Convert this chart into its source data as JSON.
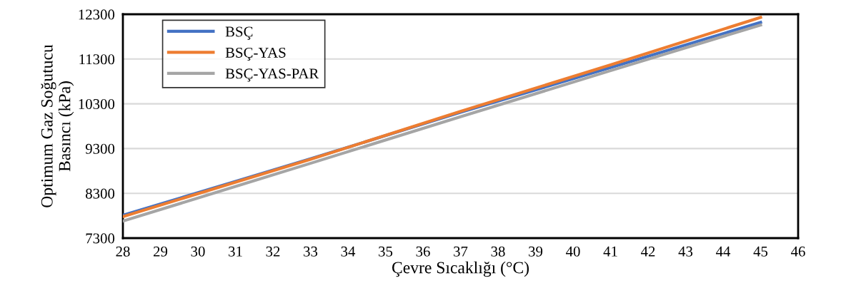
{
  "chart_data": {
    "type": "line",
    "xlabel": "Çevre Sıcaklığı (°C)",
    "ylabel": "Optimum Gaz Soğutucu\nBasıncı (kPa)",
    "series": [
      {
        "name": "BSÇ",
        "color": "#4472c4",
        "x": [
          28,
          33,
          37,
          41,
          45
        ],
        "values": [
          7810,
          9070,
          10110,
          11110,
          12120
        ]
      },
      {
        "name": "BSÇ-YAS",
        "color": "#ed7d31",
        "x": [
          28,
          33,
          37,
          41,
          45
        ],
        "values": [
          7780,
          9060,
          10130,
          11170,
          12230
        ]
      },
      {
        "name": "BSÇ-YAS-PAR",
        "color": "#a5a5a5",
        "x": [
          28,
          33,
          37,
          41,
          45
        ],
        "values": [
          7680,
          8970,
          10010,
          11040,
          12060
        ]
      }
    ],
    "xlim": [
      28,
      46
    ],
    "xticks": [
      28,
      29,
      30,
      31,
      32,
      33,
      34,
      35,
      36,
      37,
      38,
      39,
      40,
      41,
      42,
      43,
      44,
      45,
      46
    ],
    "ylim": [
      7300,
      12300
    ],
    "yticks": [
      7300,
      8300,
      9300,
      10300,
      11300,
      12300
    ],
    "grid": "y",
    "legend": "top left",
    "line_style": "solid",
    "marker": "none"
  }
}
